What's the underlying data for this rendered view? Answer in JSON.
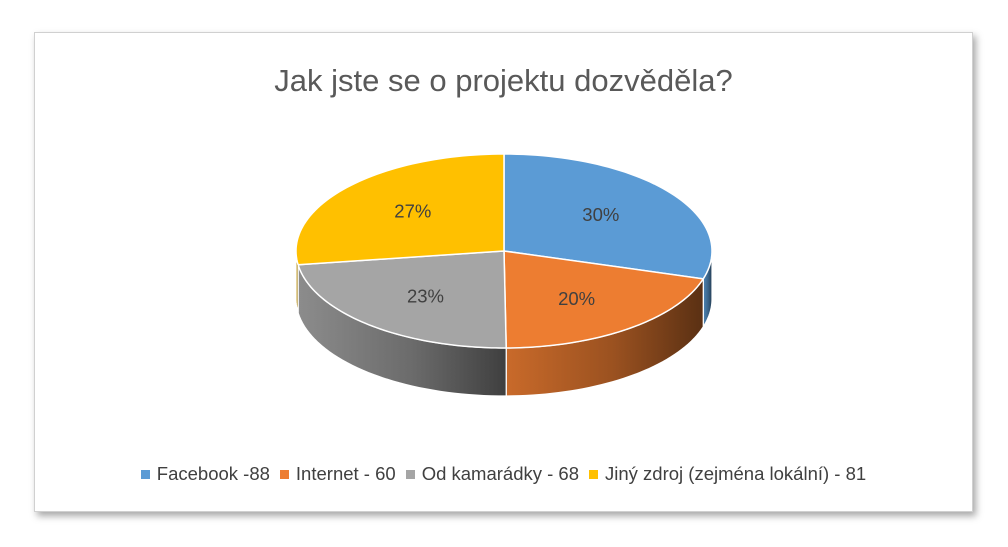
{
  "chart_data": {
    "type": "pie",
    "title": "Jak jste se o projektu dozvěděla?",
    "slices": [
      {
        "label": "Facebook -88",
        "value": 88,
        "percent_label": "30%",
        "color": "#5B9BD5"
      },
      {
        "label": "Internet - 60",
        "value": 60,
        "percent_label": "20%",
        "color": "#ED7D31"
      },
      {
        "label": "Od kamarádky - 68",
        "value": 68,
        "percent_label": "23%",
        "color": "#A5A5A5"
      },
      {
        "label": "Jiný zdroj (zejména lokální) - 81",
        "value": 81,
        "percent_label": "27%",
        "color": "#FFC000"
      }
    ],
    "legend_position": "bottom",
    "style": "3d-pie"
  }
}
